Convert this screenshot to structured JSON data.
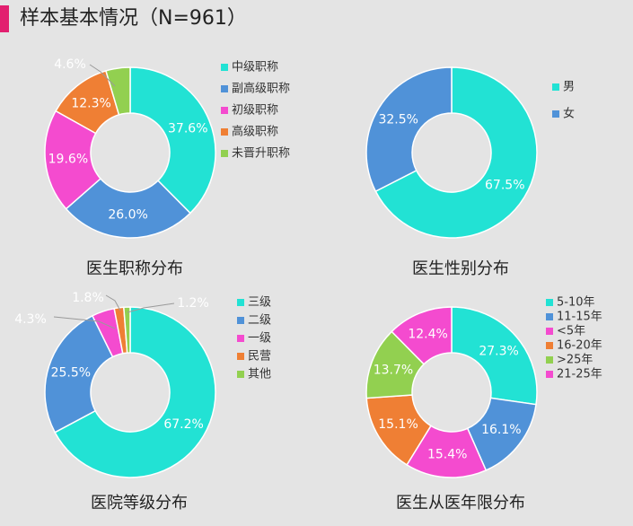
{
  "header": {
    "title": "样本基本情况（N=961）"
  },
  "colors": {
    "accent": "#e21f6f",
    "cyan": "#22e2d4",
    "blue": "#5092d8",
    "magenta": "#f44bcf",
    "orange": "#ef7f34",
    "green": "#92d050"
  },
  "chart_data": [
    {
      "type": "pie",
      "style": "donut",
      "title": "医生职称分布",
      "legend": "right",
      "slices": [
        {
          "label": "中级职称",
          "value": 37.6,
          "value_label": "37.6%",
          "color": "#22e2d4"
        },
        {
          "label": "副高级职称",
          "value": 26.0,
          "value_label": "26.0%",
          "color": "#5092d8"
        },
        {
          "label": "初级职称",
          "value": 19.6,
          "value_label": "19.6%",
          "color": "#f44bcf"
        },
        {
          "label": "高级职称",
          "value": 12.3,
          "value_label": "12.3%",
          "color": "#ef7f34"
        },
        {
          "label": "未晋升职称",
          "value": 4.6,
          "value_label": "4.6%",
          "color": "#92d050"
        }
      ]
    },
    {
      "type": "pie",
      "style": "donut",
      "title": "医生性别分布",
      "legend": "right",
      "slices": [
        {
          "label": "男",
          "value": 67.5,
          "value_label": "67.5%",
          "color": "#22e2d4"
        },
        {
          "label": "女",
          "value": 32.5,
          "value_label": "32.5%",
          "color": "#5092d8"
        }
      ]
    },
    {
      "type": "pie",
      "style": "donut",
      "title": "医院等级分布",
      "legend": "right",
      "slices": [
        {
          "label": "三级",
          "value": 67.2,
          "value_label": "67.2%",
          "color": "#22e2d4"
        },
        {
          "label": "二级",
          "value": 25.5,
          "value_label": "25.5%",
          "color": "#5092d8"
        },
        {
          "label": "一级",
          "value": 4.3,
          "value_label": "4.3%",
          "color": "#f44bcf"
        },
        {
          "label": "民营",
          "value": 1.8,
          "value_label": "1.8%",
          "color": "#ef7f34"
        },
        {
          "label": "其他",
          "value": 1.2,
          "value_label": "1.2%",
          "color": "#92d050"
        }
      ]
    },
    {
      "type": "pie",
      "style": "donut",
      "title": "医生从医年限分布",
      "legend": "right",
      "slices": [
        {
          "label": "5-10年",
          "value": 27.3,
          "value_label": "27.3%",
          "color": "#22e2d4"
        },
        {
          "label": "11-15年",
          "value": 16.1,
          "value_label": "16.1%",
          "color": "#5092d8"
        },
        {
          "label": "<5年",
          "value": 15.4,
          "value_label": "15.4%",
          "color": "#f44bcf"
        },
        {
          "label": "16-20年",
          "value": 15.1,
          "value_label": "15.1%",
          "color": "#ef7f34"
        },
        {
          "label": ">25年",
          "value": 13.7,
          "value_label": "13.7%",
          "color": "#92d050"
        },
        {
          "label": "21-25年",
          "value": 12.4,
          "value_label": "12.4%",
          "color": "#f44bcf"
        }
      ]
    }
  ]
}
